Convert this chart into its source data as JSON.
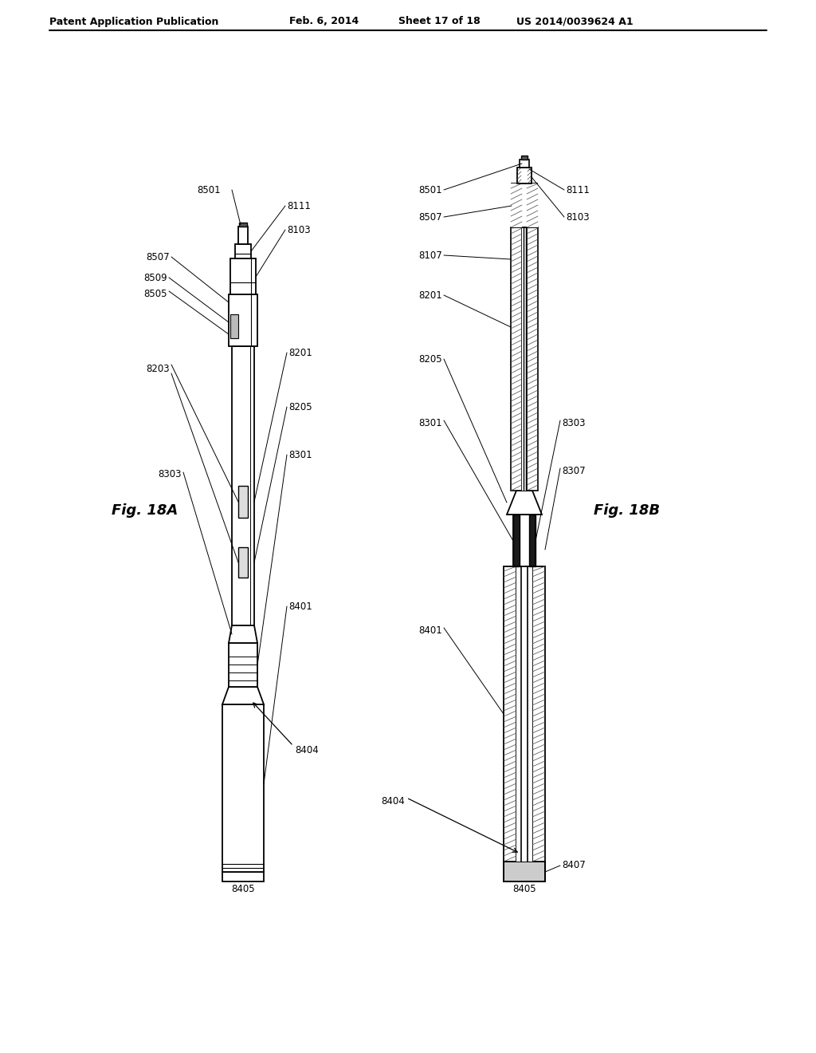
{
  "bg_color": "#ffffff",
  "header_text": "Patent Application Publication",
  "header_date": "Feb. 6, 2014",
  "header_sheet": "Sheet 17 of 18",
  "header_patent": "US 2014/0039624 A1",
  "fig_a_label": "Fig. 18A",
  "fig_b_label": "Fig. 18B",
  "line_color": "#000000",
  "text_color": "#000000",
  "hatch_color": "#555555",
  "dark_fill": "#1a1a1a",
  "gray_fill": "#aaaaaa",
  "light_gray": "#cccccc"
}
